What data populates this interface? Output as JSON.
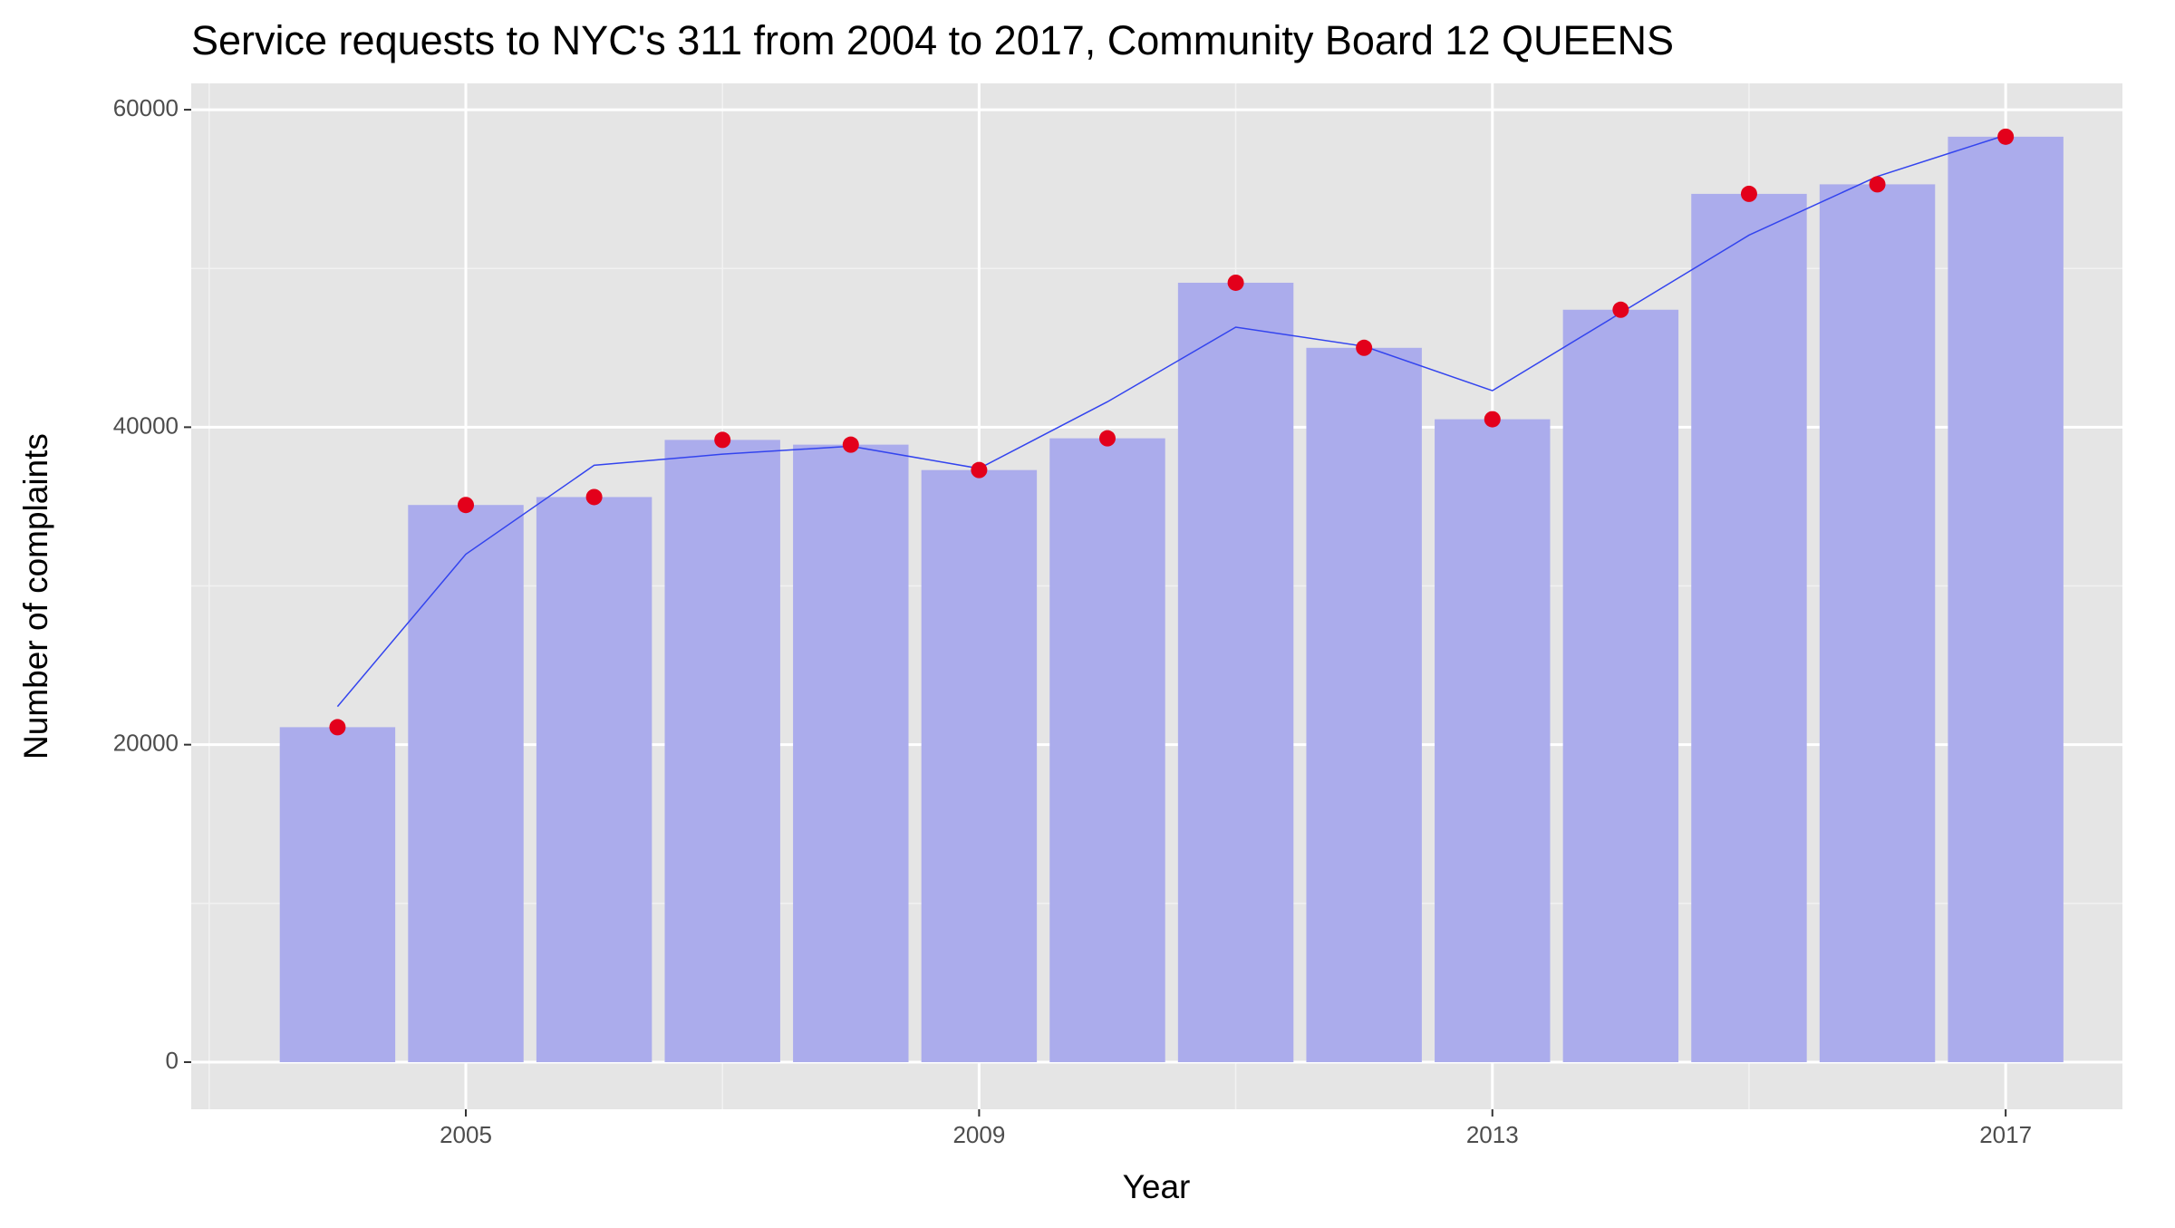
{
  "chart_data": {
    "type": "bar",
    "title": "Service requests to NYC's 311 from 2004 to 2017, Community Board 12 QUEENS",
    "x_label": "Year",
    "y_label": "Number of complaints",
    "x": [
      2004,
      2005,
      2006,
      2007,
      2008,
      2009,
      2010,
      2011,
      2012,
      2013,
      2014,
      2015,
      2016,
      2017
    ],
    "values": [
      21100,
      35100,
      35600,
      39200,
      38900,
      37300,
      39300,
      49100,
      45000,
      40500,
      47400,
      54700,
      55300,
      58300
    ],
    "trend": [
      22400,
      32000,
      37600,
      38300,
      38800,
      37400,
      41600,
      46300,
      45100,
      42300,
      47200,
      52100,
      55800,
      58400
    ],
    "color": "#abacec",
    "point_color": "#e3001b",
    "trend_color": "#3344ee",
    "xlim": [
      2002.86,
      2017.91
    ],
    "xticks": [
      2005,
      2009,
      2013,
      2017
    ],
    "x_minor_ticks": [
      2003,
      2007,
      2011,
      2015
    ],
    "ylim": [
      -2970,
      61660
    ],
    "yticks": [
      0,
      20000,
      40000,
      60000
    ],
    "y_minor_ticks": [
      10000,
      30000,
      50000
    ],
    "grid": true
  }
}
